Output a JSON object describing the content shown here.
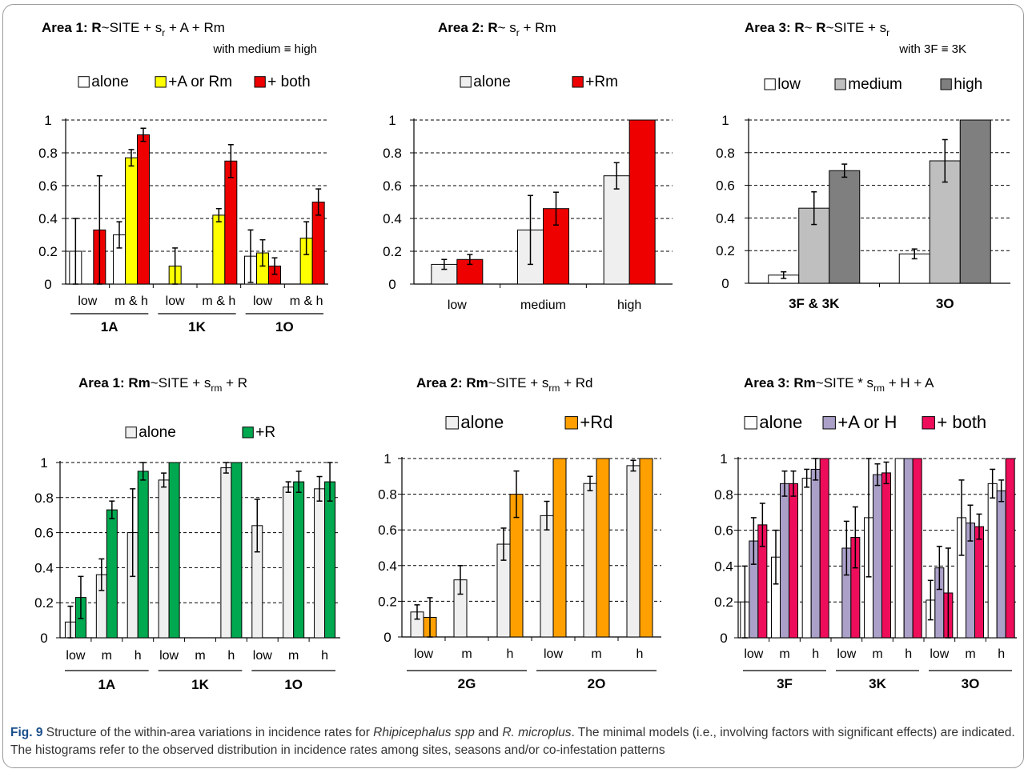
{
  "colors": {
    "white": "#ffffff",
    "lightgray": "#efefef",
    "gray": "#bfbfbf",
    "darkgray": "#7f7f7f",
    "yellow": "#ffff00",
    "red": "#ee0000",
    "green": "#00a850",
    "orange": "#ffa000",
    "lavender": "#aaa0c8",
    "pink": "#ee0d5a"
  },
  "caption": {
    "fig_label": "Fig. 9",
    "text1": " Structure of the within-area variations in incidence rates for ",
    "species1": "Rhipicephalus spp",
    "text2": " and ",
    "species2": "R. microplus",
    "text3": ". The minimal models (i.e., involving factors with significant effects) are indicated. The histograms refer to the observed distribution in incidence rates among sites, seasons and/or co-infestation patterns"
  },
  "chart_data": [
    {
      "type": "bar",
      "title": {
        "bold": "Area 1: R",
        "rest": "~SITE + s",
        "sub": "r",
        "after": " + A + Rm",
        "second_line": "with medium ≡ high"
      },
      "ylim": [
        0,
        1
      ],
      "yticks": [
        "0",
        "0.2",
        "0.4",
        "0.6",
        "0.8",
        "1"
      ],
      "grid": "dashed",
      "legend": [
        {
          "label": "alone",
          "color": "white"
        },
        {
          "label": "+A or Rm",
          "color": "yellow"
        },
        {
          "label": "+ both",
          "color": "red"
        }
      ],
      "categories": [
        "low",
        "m & h",
        "low",
        "m & h",
        "low",
        "m & h"
      ],
      "groups": [
        {
          "label": "1A",
          "span": [
            0,
            1
          ]
        },
        {
          "label": "1K",
          "span": [
            2,
            3
          ]
        },
        {
          "label": "1O",
          "span": [
            4,
            5
          ]
        }
      ],
      "series": [
        {
          "color": "white",
          "values": [
            0.2,
            0.3,
            null,
            null,
            0.17,
            null
          ],
          "err": [
            0.2,
            0.08,
            null,
            null,
            0.16,
            null
          ]
        },
        {
          "color": "yellow",
          "values": [
            null,
            0.77,
            0.11,
            0.42,
            0.19,
            0.28
          ],
          "err": [
            null,
            0.05,
            0.11,
            0.04,
            0.08,
            0.1
          ]
        },
        {
          "color": "red",
          "values": [
            0.33,
            0.91,
            null,
            0.75,
            0.11,
            0.5
          ],
          "err": [
            0.33,
            0.04,
            null,
            0.1,
            0.05,
            0.08
          ]
        }
      ]
    },
    {
      "type": "bar",
      "title": {
        "bold": "Area 2: R",
        "rest": "~ s",
        "sub": "r",
        "after": " + Rm",
        "second_line": ""
      },
      "ylim": [
        0,
        1
      ],
      "yticks": [
        "0",
        "0.2",
        "0.4",
        "0.6",
        "0.8",
        "1"
      ],
      "grid": "dashed",
      "legend": [
        {
          "label": "alone",
          "color": "lightgray"
        },
        {
          "label": "+Rm",
          "color": "red"
        }
      ],
      "categories": [
        "low",
        "medium",
        "high"
      ],
      "groups": [],
      "series": [
        {
          "color": "lightgray",
          "values": [
            0.12,
            0.33,
            0.66
          ],
          "err": [
            0.03,
            0.21,
            0.08
          ]
        },
        {
          "color": "red",
          "values": [
            0.15,
            0.46,
            1.0
          ],
          "err": [
            0.03,
            0.1,
            null
          ]
        }
      ]
    },
    {
      "type": "bar",
      "title": {
        "bold": "Area 3: R",
        "rest": "~ ",
        "bold2": "R",
        "rest2": "~SITE + s",
        "sub": "r",
        "after": "",
        "second_line": "with 3F ≡ 3K"
      },
      "ylim": [
        0,
        1
      ],
      "yticks": [
        "0",
        "0.2",
        "0.4",
        "0.6",
        "0.8",
        "1"
      ],
      "grid": "dashed",
      "legend": [
        {
          "label": "low",
          "color": "white"
        },
        {
          "label": "medium",
          "color": "gray"
        },
        {
          "label": "high",
          "color": "darkgray"
        }
      ],
      "categories": [
        "3F  &  3K",
        "3O"
      ],
      "groups": [],
      "series": [
        {
          "color": "white",
          "values": [
            0.05,
            0.18
          ],
          "err": [
            0.02,
            0.03
          ]
        },
        {
          "color": "gray",
          "values": [
            0.46,
            0.75
          ],
          "err": [
            0.1,
            0.13
          ]
        },
        {
          "color": "darkgray",
          "values": [
            0.69,
            1.0
          ],
          "err": [
            0.04,
            null
          ]
        }
      ]
    },
    {
      "type": "bar",
      "title": {
        "bold": "Area 1: Rm",
        "rest": "~SITE + s",
        "sub": "rm",
        "after": " + R",
        "second_line": ""
      },
      "ylim": [
        0,
        1
      ],
      "yticks": [
        "0",
        "0.2",
        "0.4",
        "0.6",
        "0.8",
        "1"
      ],
      "grid": "dashed",
      "legend": [
        {
          "label": "alone",
          "color": "lightgray"
        },
        {
          "label": "+R",
          "color": "green"
        }
      ],
      "categories": [
        "low",
        "m",
        "h",
        "low",
        "m",
        "h",
        "low",
        "m",
        "h"
      ],
      "groups": [
        {
          "label": "1A",
          "span": [
            0,
            2
          ]
        },
        {
          "label": "1K",
          "span": [
            3,
            5
          ]
        },
        {
          "label": "1O",
          "span": [
            6,
            8
          ]
        }
      ],
      "series": [
        {
          "color": "lightgray",
          "values": [
            0.09,
            0.36,
            0.6,
            0.9,
            null,
            0.97,
            0.64,
            0.86,
            0.85
          ],
          "err": [
            0.09,
            0.09,
            0.25,
            0.04,
            null,
            0.03,
            0.15,
            0.03,
            0.07
          ]
        },
        {
          "color": "green",
          "values": [
            0.23,
            0.73,
            0.95,
            1.0,
            null,
            1.0,
            null,
            0.89,
            0.89
          ],
          "err": [
            0.12,
            0.05,
            0.05,
            null,
            null,
            null,
            null,
            0.06,
            0.11
          ]
        }
      ]
    },
    {
      "type": "bar",
      "title": {
        "bold": "Area 2: Rm",
        "rest": "~SITE + s",
        "sub": "rm",
        "after": " + Rd",
        "second_line": ""
      },
      "ylim": [
        0,
        1
      ],
      "yticks": [
        "0",
        "0.2",
        "0.4",
        "0.6",
        "0.8",
        "1"
      ],
      "grid": "dashed",
      "legend": [
        {
          "label": "alone",
          "color": "lightgray"
        },
        {
          "label": "+Rd",
          "color": "orange"
        }
      ],
      "categories": [
        "low",
        "m",
        "h",
        "low",
        "m",
        "h"
      ],
      "groups": [
        {
          "label": "2G",
          "span": [
            0,
            2
          ]
        },
        {
          "label": "2O",
          "span": [
            3,
            5
          ]
        }
      ],
      "series": [
        {
          "color": "lightgray",
          "values": [
            0.14,
            0.32,
            0.52,
            0.68,
            0.86,
            0.96
          ],
          "err": [
            0.04,
            0.08,
            0.09,
            0.08,
            0.04,
            0.03
          ]
        },
        {
          "color": "orange",
          "values": [
            0.11,
            null,
            0.8,
            1.0,
            1.0,
            1.0
          ],
          "err": [
            0.11,
            null,
            0.13,
            null,
            null,
            null
          ]
        }
      ]
    },
    {
      "type": "bar",
      "title": {
        "bold": "Area 3: Rm",
        "rest": "~SITE * s",
        "sub": "rm",
        "after": " + H + A",
        "second_line": ""
      },
      "ylim": [
        0,
        1
      ],
      "yticks": [
        "0",
        "0.2",
        "0.4",
        "0.6",
        "0.8",
        "1"
      ],
      "grid": "dashed",
      "legend": [
        {
          "label": "alone",
          "color": "white"
        },
        {
          "label": "+A or H",
          "color": "lavender"
        },
        {
          "label": "+ both",
          "color": "pink"
        }
      ],
      "categories": [
        "low",
        "m",
        "h",
        "low",
        "m",
        "h",
        "low",
        "m",
        "h"
      ],
      "groups": [
        {
          "label": "3F",
          "span": [
            0,
            2
          ]
        },
        {
          "label": "3K",
          "span": [
            3,
            5
          ]
        },
        {
          "label": "3O",
          "span": [
            6,
            8
          ]
        }
      ],
      "series": [
        {
          "color": "white",
          "values": [
            0.2,
            0.45,
            0.89,
            null,
            0.67,
            1.0,
            0.21,
            0.67,
            0.86
          ],
          "err": [
            0.2,
            0.15,
            0.05,
            null,
            0.33,
            null,
            0.11,
            0.21,
            0.08
          ]
        },
        {
          "color": "lavender",
          "values": [
            0.54,
            0.86,
            0.94,
            0.5,
            0.91,
            1.0,
            0.39,
            0.64,
            0.82
          ],
          "err": [
            0.13,
            0.07,
            0.06,
            0.15,
            0.06,
            null,
            0.12,
            0.1,
            0.06
          ]
        },
        {
          "color": "pink",
          "values": [
            0.63,
            0.86,
            1.0,
            0.56,
            0.92,
            1.0,
            0.25,
            0.62,
            1.0
          ],
          "err": [
            0.12,
            0.07,
            null,
            0.17,
            0.06,
            null,
            0.25,
            0.07,
            null
          ]
        }
      ]
    }
  ]
}
